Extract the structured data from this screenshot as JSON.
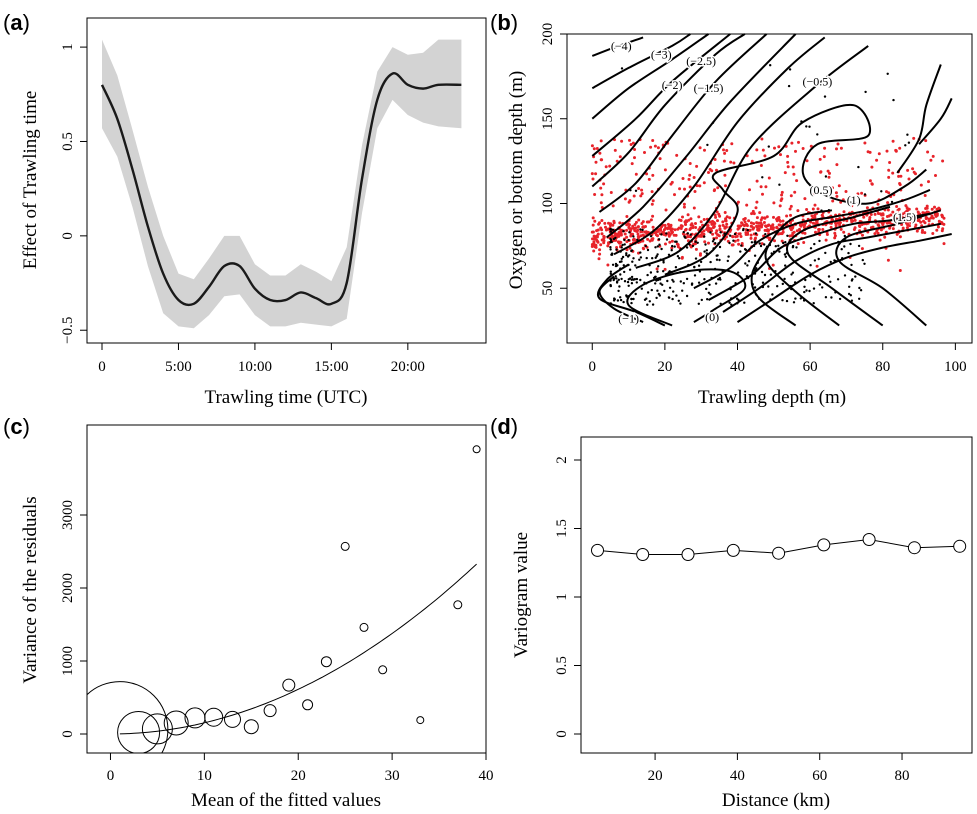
{
  "chart_data": [
    {
      "panel": "(a)",
      "type": "line",
      "xlabel": "Trawling time (UTC)",
      "ylabel": "Effect of Trawling time",
      "xlim": [
        0,
        24
      ],
      "ylim": [
        -0.52,
        1.08
      ],
      "x_ticks": [
        0,
        5,
        10,
        15,
        20
      ],
      "x_tick_labels": [
        "0",
        "5:00",
        "10:00",
        "15:00",
        "20:00"
      ],
      "y_ticks": [
        -0.5,
        0,
        0.5,
        1
      ],
      "y_tick_labels": [
        "−0.5",
        "0",
        "0.5",
        "1"
      ],
      "series": [
        {
          "x": [
            0,
            1,
            2,
            3,
            4,
            5,
            6,
            7,
            8,
            9,
            10,
            11,
            12,
            13,
            14,
            15,
            16,
            17,
            18,
            19,
            20,
            21,
            22,
            23.5
          ],
          "y": [
            0.8,
            0.62,
            0.35,
            0.05,
            -0.2,
            -0.34,
            -0.36,
            -0.27,
            -0.16,
            -0.16,
            -0.28,
            -0.34,
            -0.34,
            -0.3,
            -0.33,
            -0.36,
            -0.25,
            0.3,
            0.72,
            0.86,
            0.8,
            0.78,
            0.8,
            0.8
          ],
          "lower": [
            0.57,
            0.42,
            0.15,
            -0.16,
            -0.41,
            -0.48,
            -0.49,
            -0.42,
            -0.32,
            -0.31,
            -0.42,
            -0.48,
            -0.48,
            -0.46,
            -0.47,
            -0.48,
            -0.44,
            0.12,
            0.57,
            0.72,
            0.64,
            0.6,
            0.58,
            0.57
          ],
          "upper": [
            1.04,
            0.85,
            0.56,
            0.26,
            0.0,
            -0.2,
            -0.23,
            -0.12,
            0.0,
            0.0,
            -0.15,
            -0.21,
            -0.21,
            -0.15,
            -0.19,
            -0.24,
            -0.06,
            0.48,
            0.87,
            1.0,
            0.96,
            0.97,
            1.04,
            1.04
          ]
        }
      ],
      "colors": {
        "band": "#d3d3d3",
        "line": "#1a1a1a"
      }
    },
    {
      "panel": "(b)",
      "type": "scatter",
      "xlabel": "Trawling depth (m)",
      "ylabel": "Oxygen or bottom depth (m)",
      "xlim": [
        -2,
        101
      ],
      "ylim": [
        23,
        200
      ],
      "x_ticks": [
        0,
        20,
        40,
        60,
        80,
        100
      ],
      "y_ticks": [
        50,
        100,
        150,
        200
      ],
      "contour_labels": [
        "(−4)",
        "(−3)",
        "(−2.5)",
        "(−2)",
        "(−1.5)",
        "(−0.5)",
        "(0.5)",
        "(1)",
        "(1.5)",
        "(−1)",
        "(0)"
      ],
      "colors": {
        "red_points": "#e8232a",
        "black_points": "#000000",
        "contours": "#000000"
      }
    },
    {
      "panel": "(c)",
      "type": "scatter",
      "xlabel": "Mean of the fitted values",
      "ylabel": "Variance of the residuals",
      "xlim": [
        -2.5,
        40
      ],
      "ylim": [
        -80,
        4000
      ],
      "x_ticks": [
        0,
        10,
        20,
        30,
        40
      ],
      "y_ticks": [
        0,
        1000,
        2000,
        3000
      ],
      "points": [
        {
          "x": 1,
          "y": 60,
          "r": 48
        },
        {
          "x": 3,
          "y": 20,
          "r": 21
        },
        {
          "x": 5,
          "y": 70,
          "r": 15
        },
        {
          "x": 7,
          "y": 150,
          "r": 12
        },
        {
          "x": 9,
          "y": 220,
          "r": 10
        },
        {
          "x": 11,
          "y": 230,
          "r": 9
        },
        {
          "x": 13,
          "y": 200,
          "r": 8
        },
        {
          "x": 15,
          "y": 100,
          "r": 7
        },
        {
          "x": 17,
          "y": 320,
          "r": 6
        },
        {
          "x": 19,
          "y": 670,
          "r": 6
        },
        {
          "x": 21,
          "y": 400,
          "r": 5
        },
        {
          "x": 23,
          "y": 990,
          "r": 5
        },
        {
          "x": 25,
          "y": 2570,
          "r": 4
        },
        {
          "x": 27,
          "y": 1460,
          "r": 4
        },
        {
          "x": 29,
          "y": 880,
          "r": 4
        },
        {
          "x": 33,
          "y": 190,
          "r": 3.5
        },
        {
          "x": 37,
          "y": 1770,
          "r": 4
        },
        {
          "x": 39,
          "y": 3900,
          "r": 3.5
        }
      ],
      "fit": {
        "type": "quadratic",
        "a": 1.53,
        "x_range": [
          1,
          39
        ]
      }
    },
    {
      "panel": "(d)",
      "type": "line",
      "xlabel": "Distance (km)",
      "ylabel": "Variogram value",
      "xlim": [
        2,
        97
      ],
      "ylim": [
        -0.05,
        2.2
      ],
      "x_ticks": [
        20,
        40,
        60,
        80
      ],
      "y_ticks": [
        0,
        0.5,
        1,
        1.5,
        2
      ],
      "series": [
        {
          "x": [
            6,
            17,
            28,
            39,
            50,
            61,
            72,
            83,
            94
          ],
          "y": [
            1.34,
            1.31,
            1.31,
            1.34,
            1.32,
            1.38,
            1.42,
            1.36,
            1.37
          ]
        }
      ]
    }
  ]
}
